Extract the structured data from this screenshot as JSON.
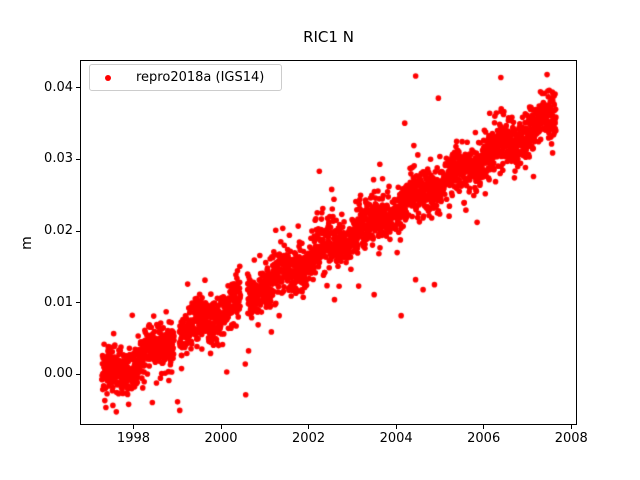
{
  "figure": {
    "title": "RIC1 N",
    "background_color": "#ffffff"
  },
  "legend": {
    "label": "repro2018a (IGS14)",
    "marker_color": "#ff0000",
    "position": "upper-left"
  },
  "chart_data": {
    "type": "scatter",
    "title": "RIC1 N",
    "xlabel": "",
    "ylabel": "m",
    "grid": false,
    "legend_position": "upper-left",
    "series": [
      {
        "name": "repro2018a (IGS14)",
        "color": "#ff0000",
        "marker": "dot",
        "marker_radius_px": 2.8,
        "description": "Daily station north-component positions rising linearly ~3.6 mm/yr from about -0.001 m in 1997.3 to about 0.036 m in 2007.7"
      }
    ],
    "xlim": [
      1996.79,
      2008.12
    ],
    "ylim": [
      -0.007,
      0.0438
    ],
    "xticks": [
      1998,
      2000,
      2002,
      2004,
      2006,
      2008
    ],
    "xtick_labels": [
      "1998",
      "2000",
      "2002",
      "2004",
      "2006",
      "2008"
    ],
    "yticks": [
      0.0,
      0.01,
      0.02,
      0.03,
      0.04
    ],
    "ytick_labels": [
      "0.00",
      "0.01",
      "0.02",
      "0.03",
      "0.04"
    ],
    "trend": {
      "x_start": 1997.27,
      "x_end": 2007.66,
      "value_start": -0.001,
      "value_end": 0.0362
    },
    "scatter_model": {
      "seed": 20181,
      "n_points": 3000,
      "x_jitter": 0.002,
      "noise_sigma": 0.0015,
      "wide_fraction": 0.1,
      "wide_noise_sigma": 0.0028,
      "outlier_fraction": 0.03,
      "outlier_sigma": 0.0048,
      "positive_outlier_scale": 0.75,
      "seasonal_amplitude": 0.0009,
      "seasonal_phase": 0.15,
      "clamp": [
        -0.0053,
        0.0419
      ],
      "gaps": [
        [
          1998.92,
          1999.04
        ],
        [
          2000.44,
          2000.6
        ]
      ]
    },
    "notable_outliers": [
      {
        "x": 1997.36,
        "y": -0.0047
      },
      {
        "x": 1997.52,
        "y": -0.0044
      },
      {
        "x": 1999.0,
        "y": -0.0039
      },
      {
        "x": 1999.05,
        "y": -0.0051
      },
      {
        "x": 2000.55,
        "y": 0.0014
      },
      {
        "x": 2000.56,
        "y": -0.0029
      },
      {
        "x": 2003.5,
        "y": 0.0111
      },
      {
        "x": 2004.2,
        "y": 0.0351
      },
      {
        "x": 2004.45,
        "y": 0.0417
      },
      {
        "x": 2004.62,
        "y": 0.0118
      },
      {
        "x": 2004.88,
        "y": 0.0125
      },
      {
        "x": 2004.97,
        "y": 0.0386
      },
      {
        "x": 2006.4,
        "y": 0.0415
      }
    ]
  }
}
